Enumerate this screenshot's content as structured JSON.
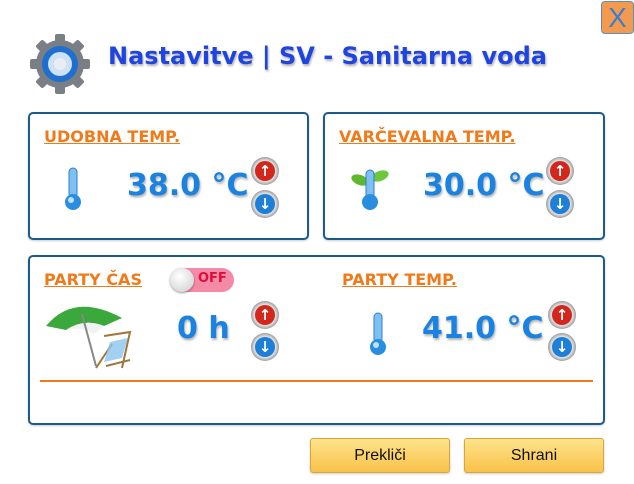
{
  "header": {
    "title": "Nastavitve | SV - Sanitarna voda",
    "close_label": "X",
    "icon": "gear-icon"
  },
  "comfort": {
    "label": "UDOBNA TEMP.",
    "value": "38.0 °C",
    "icon": "thermometer-icon"
  },
  "eco": {
    "label": "VARČEVALNA TEMP.",
    "value": "30.0 °C",
    "icon": "eco-thermometer-icon"
  },
  "party": {
    "time_label": "PARTY ČAS",
    "toggle_state": "OFF",
    "time_value": "0 h",
    "time_icon": "beach-umbrella-icon",
    "temp_label": "PARTY TEMP.",
    "temp_value": "41.0 °C"
  },
  "footer": {
    "cancel_label": "Prekliči",
    "save_label": "Shrani"
  },
  "colors": {
    "title": "#1f44e0",
    "label": "#f07a1a",
    "value": "#1a82e0",
    "border": "#1d5a8c",
    "button": "#f9c24a"
  }
}
